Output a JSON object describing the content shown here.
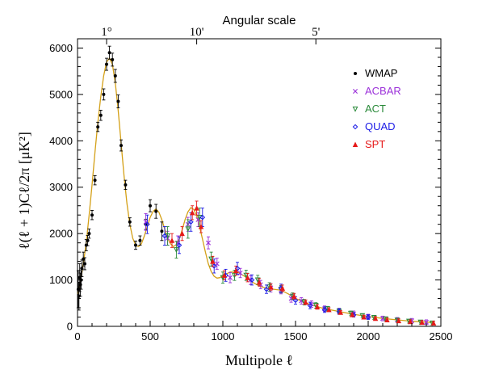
{
  "chart_data": {
    "type": "scatter",
    "xlabel": "Multipole ℓ",
    "ylabel": "ℓ(ℓ + 1)Cℓ/2π  [μK²]",
    "top_axis_title": "Angular scale",
    "top_ticks": [
      {
        "label": "1°",
        "ell": 200
      },
      {
        "label": "10'",
        "ell": 820
      },
      {
        "label": "5'",
        "ell": 1640
      }
    ],
    "xlim": [
      0,
      2500
    ],
    "ylim": [
      0,
      6200
    ],
    "x_ticks": [
      0,
      500,
      1000,
      1500,
      2000,
      2500
    ],
    "y_ticks": [
      0,
      1000,
      2000,
      3000,
      4000,
      5000,
      6000
    ],
    "grid": false,
    "legend_position": "top-right",
    "model_curve": {
      "color": "#d4a017",
      "x": [
        2,
        10,
        20,
        30,
        40,
        60,
        80,
        100,
        120,
        140,
        160,
        180,
        200,
        220,
        240,
        260,
        280,
        300,
        320,
        340,
        360,
        380,
        400,
        420,
        440,
        460,
        480,
        500,
        520,
        540,
        560,
        580,
        600,
        620,
        640,
        660,
        680,
        700,
        720,
        740,
        760,
        780,
        800,
        820,
        840,
        860,
        880,
        900,
        920,
        940,
        960,
        980,
        1000,
        1050,
        1100,
        1150,
        1200,
        1250,
        1300,
        1350,
        1400,
        1450,
        1500,
        1600,
        1700,
        1800,
        1900,
        2000,
        2100,
        2200,
        2300,
        2400,
        2450
      ],
      "y": [
        700,
        850,
        1000,
        1150,
        1350,
        1800,
        2400,
        3050,
        3750,
        4400,
        4950,
        5400,
        5700,
        5780,
        5650,
        5250,
        4650,
        3950,
        3250,
        2650,
        2200,
        1900,
        1750,
        1720,
        1780,
        1950,
        2150,
        2350,
        2480,
        2530,
        2460,
        2300,
        2100,
        1900,
        1780,
        1720,
        1760,
        1880,
        2080,
        2300,
        2470,
        2560,
        2520,
        2380,
        2150,
        1880,
        1600,
        1350,
        1180,
        1080,
        1040,
        1050,
        1090,
        1170,
        1170,
        1080,
        960,
        870,
        820,
        800,
        780,
        700,
        600,
        470,
        380,
        320,
        260,
        210,
        170,
        140,
        110,
        90,
        80
      ]
    },
    "series": [
      {
        "name": "WMAP",
        "color": "#000000",
        "marker": "dot",
        "x": [
          5,
          10,
          15,
          20,
          25,
          30,
          40,
          50,
          60,
          70,
          80,
          100,
          120,
          140,
          160,
          180,
          200,
          220,
          240,
          260,
          280,
          300,
          330,
          360,
          400,
          430,
          470,
          500,
          540,
          580
        ],
        "y": [
          800,
          650,
          1050,
          900,
          1000,
          1250,
          1450,
          1350,
          1750,
          1850,
          2000,
          2400,
          3150,
          4300,
          4550,
          5000,
          5650,
          5900,
          5750,
          5400,
          4850,
          3900,
          3050,
          2250,
          1750,
          1850,
          2200,
          2600,
          2480,
          2050
        ],
        "err": [
          400,
          300,
          300,
          250,
          200,
          180,
          150,
          130,
          120,
          110,
          100,
          100,
          100,
          100,
          110,
          120,
          130,
          140,
          140,
          140,
          140,
          120,
          100,
          90,
          90,
          100,
          110,
          130,
          150,
          200
        ]
      },
      {
        "name": "ACBAR",
        "color": "#9b30d9",
        "marker": "x",
        "x": [
          470,
          620,
          690,
          760,
          830,
          900,
          960,
          1050,
          1120,
          1190,
          1260,
          1330,
          1400,
          1470,
          1540,
          1610,
          1700,
          1800,
          1900,
          2000,
          2100,
          2200,
          2300,
          2400
        ],
        "y": [
          2250,
          1900,
          1800,
          2200,
          2300,
          1800,
          1350,
          1050,
          1150,
          1000,
          900,
          830,
          780,
          600,
          550,
          480,
          380,
          330,
          270,
          210,
          170,
          140,
          120,
          90
        ],
        "err": [
          180,
          150,
          150,
          150,
          150,
          130,
          120,
          110,
          100,
          100,
          90,
          90,
          80,
          80,
          70,
          70,
          60,
          60,
          60,
          50,
          50,
          50,
          50,
          50
        ]
      },
      {
        "name": "ACT",
        "color": "#2a8a3a",
        "marker": "tri-down",
        "x": [
          620,
          680,
          760,
          840,
          920,
          1000,
          1080,
          1160,
          1240,
          1320,
          1400,
          1480,
          1560,
          1640,
          1720,
          1800,
          1880,
          1960,
          2040,
          2120,
          2200,
          2280,
          2360,
          2440
        ],
        "y": [
          1950,
          1650,
          2100,
          2350,
          1450,
          1050,
          1100,
          1100,
          1000,
          850,
          800,
          650,
          520,
          450,
          380,
          330,
          280,
          230,
          190,
          160,
          130,
          110,
          90,
          70
        ],
        "err": [
          200,
          180,
          200,
          200,
          150,
          120,
          110,
          110,
          100,
          90,
          80,
          70,
          60,
          60,
          50,
          50,
          50,
          40,
          40,
          40,
          40,
          40,
          40,
          40
        ]
      },
      {
        "name": "QUAD",
        "color": "#1a1ae6",
        "marker": "diamond",
        "x": [
          480,
          600,
          700,
          780,
          860,
          940,
          1020,
          1100,
          1200,
          1300,
          1400,
          1500,
          1600,
          1700,
          1800,
          1900,
          2000
        ],
        "y": [
          2200,
          1950,
          1750,
          2250,
          2350,
          1300,
          1100,
          1250,
          1000,
          800,
          820,
          560,
          450,
          360,
          320,
          250,
          200
        ],
        "err": [
          200,
          200,
          180,
          200,
          200,
          150,
          130,
          130,
          110,
          90,
          90,
          80,
          70,
          60,
          60,
          50,
          50
        ]
      },
      {
        "name": "SPT",
        "color": "#e61a1a",
        "marker": "tri-up",
        "x": [
          650,
          720,
          790,
          820,
          850,
          930,
          1010,
          1090,
          1170,
          1250,
          1330,
          1410,
          1490,
          1570,
          1650,
          1730,
          1810,
          1890,
          1970,
          2050,
          2130,
          2210,
          2290,
          2370,
          2450
        ],
        "y": [
          1850,
          2000,
          2450,
          2550,
          2150,
          1400,
          1100,
          1200,
          1050,
          950,
          850,
          820,
          650,
          520,
          420,
          360,
          300,
          250,
          200,
          170,
          140,
          120,
          100,
          85,
          70
        ],
        "err": [
          150,
          150,
          150,
          150,
          130,
          110,
          100,
          100,
          90,
          80,
          70,
          70,
          60,
          50,
          50,
          40,
          40,
          40,
          40,
          40,
          40,
          40,
          40,
          40,
          40
        ]
      }
    ]
  }
}
